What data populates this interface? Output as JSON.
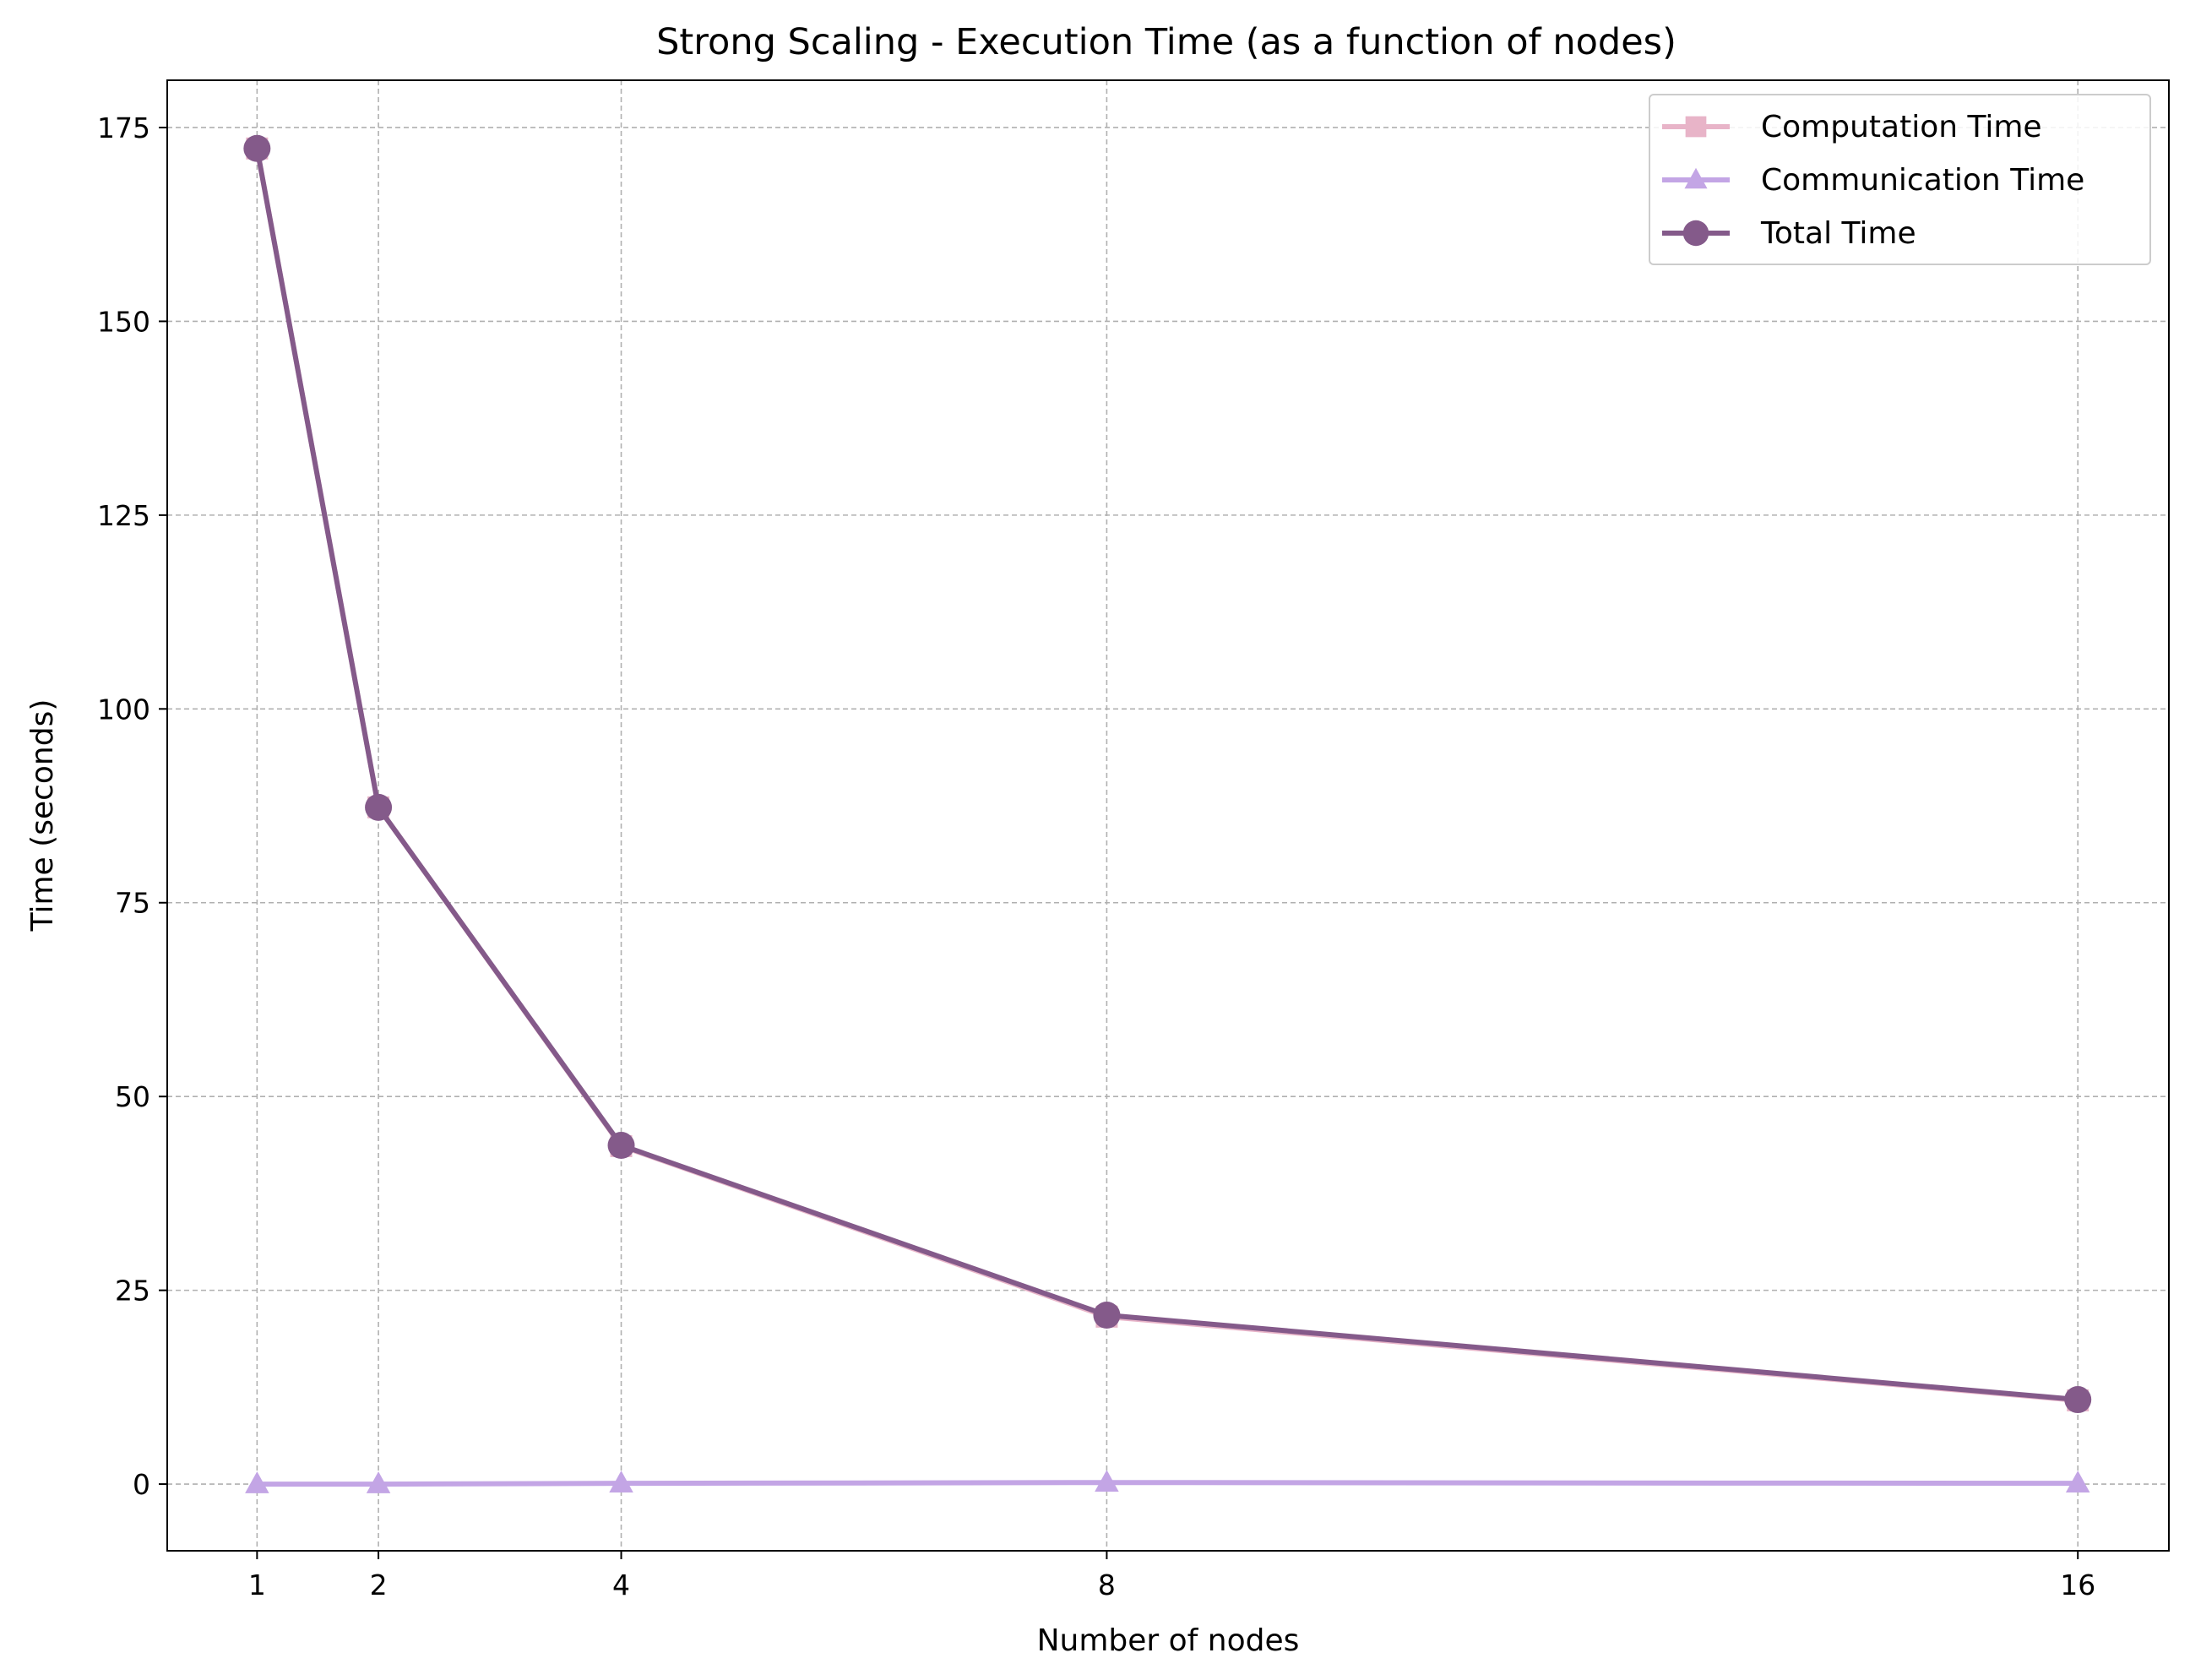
{
  "chart_data": {
    "type": "line",
    "title": "Strong Scaling - Execution Time (as a function of nodes)",
    "xlabel": "Number of nodes",
    "ylabel": "Time (seconds)",
    "x": [
      1,
      2,
      4,
      8,
      16
    ],
    "x_tick_labels": [
      "1",
      "2",
      "4",
      "8",
      "16"
    ],
    "xlim": [
      0.26,
      16.75
    ],
    "ylim": [
      -8.6,
      181.1
    ],
    "y_ticks": [
      0,
      25,
      50,
      75,
      100,
      125,
      150,
      175
    ],
    "y_tick_labels": [
      "0",
      "25",
      "50",
      "75",
      "100",
      "125",
      "150",
      "175"
    ],
    "grid": true,
    "legend_position": "top-right",
    "series": [
      {
        "name": "Computation Time",
        "marker": "square",
        "color": "#e8b4c8",
        "values": [
          172.3,
          87.3,
          43.6,
          21.6,
          10.8
        ]
      },
      {
        "name": "Communication Time",
        "marker": "triangle",
        "color": "#c3a5e5",
        "values": [
          0.0,
          0.0,
          0.1,
          0.2,
          0.1
        ]
      },
      {
        "name": "Total Time",
        "marker": "circle",
        "color": "#845a8a",
        "values": [
          172.3,
          87.3,
          43.7,
          21.8,
          10.9
        ]
      }
    ]
  }
}
